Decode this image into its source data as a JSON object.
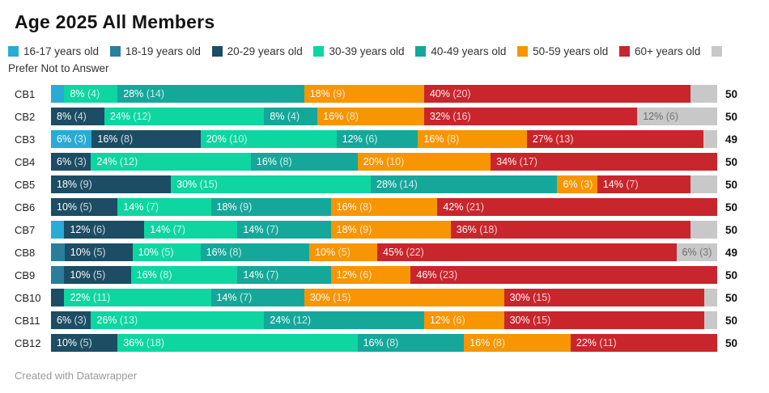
{
  "header": {
    "title": "Age 2025 All Members"
  },
  "legend": {
    "items": [
      {
        "key": "16-17",
        "label": "16-17 years old",
        "color": "#29abd6"
      },
      {
        "key": "18-19",
        "label": "18-19 years old",
        "color": "#2a7e9c"
      },
      {
        "key": "20-29",
        "label": "20-29 years old",
        "color": "#1c4d64"
      },
      {
        "key": "30-39",
        "label": "30-39 years old",
        "color": "#0ed6a1"
      },
      {
        "key": "40-49",
        "label": "40-49 years old",
        "color": "#15a89a"
      },
      {
        "key": "50-59",
        "label": "50-59 years old",
        "color": "#f79502"
      },
      {
        "key": "60+",
        "label": "60+ years old",
        "color": "#c9252c"
      },
      {
        "key": "prefer",
        "label": "Prefer Not to Answer",
        "color": "#c8c8c8"
      }
    ]
  },
  "chart_data": {
    "type": "bar",
    "subtype": "horizontal-stacked",
    "title": "Age 2025 All Members",
    "legend_position": "top",
    "grid": false,
    "group_colors": {
      "16-17": "#29abd6",
      "18-19": "#2a7e9c",
      "20-29": "#1c4d64",
      "30-39": "#0ed6a1",
      "40-49": "#15a89a",
      "50-59": "#f79502",
      "60+": "#c9252c",
      "prefer": "#c8c8c8"
    },
    "categories": [
      "CB1",
      "CB2",
      "CB3",
      "CB4",
      "CB5",
      "CB6",
      "CB7",
      "CB8",
      "CB9",
      "CB10",
      "CB11",
      "CB12"
    ],
    "rows": [
      {
        "name": "CB1",
        "total": 50,
        "segments": [
          {
            "group": "16-17",
            "pct": 2,
            "count": 1,
            "label": ""
          },
          {
            "group": "30-39",
            "pct": 8,
            "count": 4,
            "label": "8% (4)"
          },
          {
            "group": "40-49",
            "pct": 28,
            "count": 14,
            "label": "28% (14)"
          },
          {
            "group": "50-59",
            "pct": 18,
            "count": 9,
            "label": "18% (9)"
          },
          {
            "group": "60+",
            "pct": 40,
            "count": 20,
            "label": "40% (20)"
          },
          {
            "group": "prefer",
            "pct": 4,
            "count": 2,
            "label": ""
          }
        ]
      },
      {
        "name": "CB2",
        "total": 50,
        "segments": [
          {
            "group": "20-29",
            "pct": 8,
            "count": 4,
            "label": "8% (4)"
          },
          {
            "group": "30-39",
            "pct": 24,
            "count": 12,
            "label": "24% (12)"
          },
          {
            "group": "40-49",
            "pct": 8,
            "count": 4,
            "label": "8% (4)"
          },
          {
            "group": "50-59",
            "pct": 16,
            "count": 8,
            "label": "16% (8)"
          },
          {
            "group": "60+",
            "pct": 32,
            "count": 16,
            "label": "32% (16)"
          },
          {
            "group": "prefer",
            "pct": 12,
            "count": 6,
            "label": "12% (6)"
          }
        ]
      },
      {
        "name": "CB3",
        "total": 49,
        "segments": [
          {
            "group": "16-17",
            "pct": 6,
            "count": 3,
            "label": "6% (3)"
          },
          {
            "group": "20-29",
            "pct": 16,
            "count": 8,
            "label": "16% (8)"
          },
          {
            "group": "30-39",
            "pct": 20,
            "count": 10,
            "label": "20% (10)"
          },
          {
            "group": "40-49",
            "pct": 12,
            "count": 6,
            "label": "12% (6)"
          },
          {
            "group": "50-59",
            "pct": 16,
            "count": 8,
            "label": "16% (8)"
          },
          {
            "group": "60+",
            "pct": 27,
            "count": 13,
            "label": "27% (13)"
          },
          {
            "group": "prefer",
            "pct": 2,
            "count": 1,
            "label": ""
          }
        ]
      },
      {
        "name": "CB4",
        "total": 50,
        "segments": [
          {
            "group": "20-29",
            "pct": 6,
            "count": 3,
            "label": "6% (3)"
          },
          {
            "group": "30-39",
            "pct": 24,
            "count": 12,
            "label": "24% (12)"
          },
          {
            "group": "40-49",
            "pct": 16,
            "count": 8,
            "label": "16% (8)"
          },
          {
            "group": "50-59",
            "pct": 20,
            "count": 10,
            "label": "20% (10)"
          },
          {
            "group": "60+",
            "pct": 34,
            "count": 17,
            "label": "34% (17)"
          }
        ]
      },
      {
        "name": "CB5",
        "total": 50,
        "segments": [
          {
            "group": "20-29",
            "pct": 18,
            "count": 9,
            "label": "18% (9)"
          },
          {
            "group": "30-39",
            "pct": 30,
            "count": 15,
            "label": "30% (15)"
          },
          {
            "group": "40-49",
            "pct": 28,
            "count": 14,
            "label": "28% (14)"
          },
          {
            "group": "50-59",
            "pct": 6,
            "count": 3,
            "label": "6% (3)"
          },
          {
            "group": "60+",
            "pct": 14,
            "count": 7,
            "label": "14% (7)"
          },
          {
            "group": "prefer",
            "pct": 4,
            "count": 2,
            "label": ""
          }
        ]
      },
      {
        "name": "CB6",
        "total": 50,
        "segments": [
          {
            "group": "20-29",
            "pct": 10,
            "count": 5,
            "label": "10% (5)"
          },
          {
            "group": "30-39",
            "pct": 14,
            "count": 7,
            "label": "14% (7)"
          },
          {
            "group": "40-49",
            "pct": 18,
            "count": 9,
            "label": "18% (9)"
          },
          {
            "group": "50-59",
            "pct": 16,
            "count": 8,
            "label": "16% (8)"
          },
          {
            "group": "60+",
            "pct": 42,
            "count": 21,
            "label": "42% (21)"
          }
        ]
      },
      {
        "name": "CB7",
        "total": 50,
        "segments": [
          {
            "group": "16-17",
            "pct": 2,
            "count": 1,
            "label": ""
          },
          {
            "group": "20-29",
            "pct": 12,
            "count": 6,
            "label": "12% (6)"
          },
          {
            "group": "30-39",
            "pct": 14,
            "count": 7,
            "label": "14% (7)"
          },
          {
            "group": "40-49",
            "pct": 14,
            "count": 7,
            "label": "14% (7)"
          },
          {
            "group": "50-59",
            "pct": 18,
            "count": 9,
            "label": "18% (9)"
          },
          {
            "group": "60+",
            "pct": 36,
            "count": 18,
            "label": "36% (18)"
          },
          {
            "group": "prefer",
            "pct": 4,
            "count": 2,
            "label": ""
          }
        ]
      },
      {
        "name": "CB8",
        "total": 49,
        "segments": [
          {
            "group": "18-19",
            "pct": 2,
            "count": 1,
            "label": ""
          },
          {
            "group": "20-29",
            "pct": 10,
            "count": 5,
            "label": "10% (5)"
          },
          {
            "group": "30-39",
            "pct": 10,
            "count": 5,
            "label": "10% (5)"
          },
          {
            "group": "40-49",
            "pct": 16,
            "count": 8,
            "label": "16% (8)"
          },
          {
            "group": "50-59",
            "pct": 10,
            "count": 5,
            "label": "10% (5)"
          },
          {
            "group": "60+",
            "pct": 45,
            "count": 22,
            "label": "45% (22)"
          },
          {
            "group": "prefer",
            "pct": 6,
            "count": 3,
            "label": "6% (3)"
          }
        ]
      },
      {
        "name": "CB9",
        "total": 50,
        "segments": [
          {
            "group": "18-19",
            "pct": 2,
            "count": 1,
            "label": ""
          },
          {
            "group": "20-29",
            "pct": 10,
            "count": 5,
            "label": "10% (5)"
          },
          {
            "group": "30-39",
            "pct": 16,
            "count": 8,
            "label": "16% (8)"
          },
          {
            "group": "40-49",
            "pct": 14,
            "count": 7,
            "label": "14% (7)"
          },
          {
            "group": "50-59",
            "pct": 12,
            "count": 6,
            "label": "12% (6)"
          },
          {
            "group": "60+",
            "pct": 46,
            "count": 23,
            "label": "46% (23)"
          }
        ]
      },
      {
        "name": "CB10",
        "total": 50,
        "segments": [
          {
            "group": "20-29",
            "pct": 2,
            "count": 1,
            "label": ""
          },
          {
            "group": "30-39",
            "pct": 22,
            "count": 11,
            "label": "22% (11)"
          },
          {
            "group": "40-49",
            "pct": 14,
            "count": 7,
            "label": "14% (7)"
          },
          {
            "group": "50-59",
            "pct": 30,
            "count": 15,
            "label": "30% (15)"
          },
          {
            "group": "60+",
            "pct": 30,
            "count": 15,
            "label": "30% (15)"
          },
          {
            "group": "prefer",
            "pct": 2,
            "count": 1,
            "label": ""
          }
        ]
      },
      {
        "name": "CB11",
        "total": 50,
        "segments": [
          {
            "group": "20-29",
            "pct": 6,
            "count": 3,
            "label": "6% (3)"
          },
          {
            "group": "30-39",
            "pct": 26,
            "count": 13,
            "label": "26% (13)"
          },
          {
            "group": "40-49",
            "pct": 24,
            "count": 12,
            "label": "24% (12)"
          },
          {
            "group": "50-59",
            "pct": 12,
            "count": 6,
            "label": "12% (6)"
          },
          {
            "group": "60+",
            "pct": 30,
            "count": 15,
            "label": "30% (15)"
          },
          {
            "group": "prefer",
            "pct": 2,
            "count": 1,
            "label": ""
          }
        ]
      },
      {
        "name": "CB12",
        "total": 50,
        "segments": [
          {
            "group": "20-29",
            "pct": 10,
            "count": 5,
            "label": "10% (5)"
          },
          {
            "group": "30-39",
            "pct": 36,
            "count": 18,
            "label": "36% (18)"
          },
          {
            "group": "40-49",
            "pct": 16,
            "count": 8,
            "label": "16% (8)"
          },
          {
            "group": "50-59",
            "pct": 16,
            "count": 8,
            "label": "16% (8)"
          },
          {
            "group": "60+",
            "pct": 22,
            "count": 11,
            "label": "22% (11)"
          }
        ]
      }
    ]
  },
  "footer": {
    "credit": "Created with Datawrapper"
  }
}
